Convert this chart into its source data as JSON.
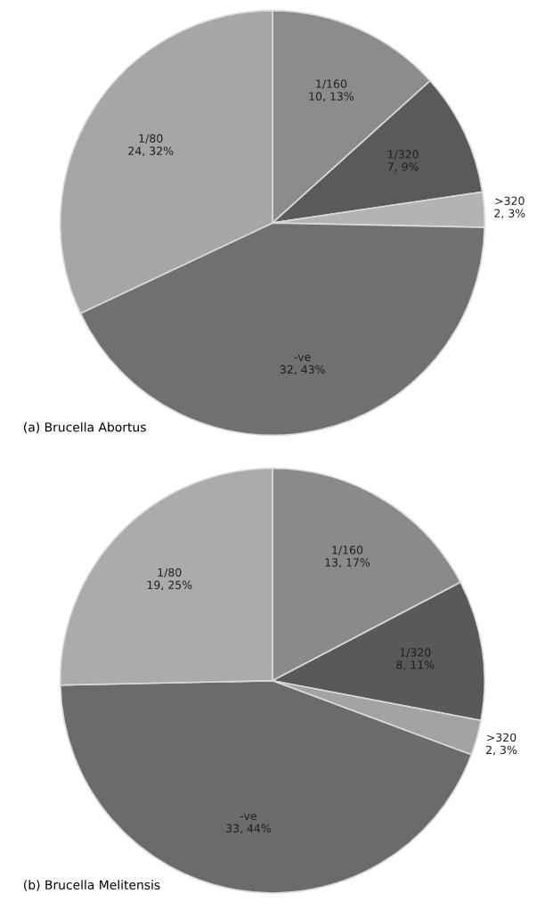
{
  "chart_data": [
    {
      "type": "pie",
      "categories": [
        "1/160",
        "1/320",
        ">320",
        "-ve",
        "1/80"
      ],
      "values": [
        10,
        7,
        2,
        32,
        24
      ],
      "colors": [
        "#8c8c8c",
        "#5a5a5a",
        "#b3b3b3",
        "#707070",
        "#a6a6a6"
      ],
      "value_labels": [
        "10, 13%",
        "7, 9%",
        "2, 3%",
        "32, 43%",
        "24, 32%"
      ],
      "annotations": [
        "(a) Brucella Abortus"
      ]
    },
    {
      "type": "pie",
      "categories": [
        "1/160",
        "1/320",
        ">320",
        "-ve",
        "1/80"
      ],
      "values": [
        13,
        8,
        2,
        33,
        19
      ],
      "colors": [
        "#8a8a8a",
        "#595959",
        "#a3a3a3",
        "#6b6b6b",
        "#ababab"
      ],
      "value_labels": [
        "13, 17%",
        "8, 11%",
        "2, 3%",
        "33, 44%",
        "19, 25%"
      ],
      "annotations": [
        "(b) Brucella Melitensis"
      ]
    }
  ]
}
